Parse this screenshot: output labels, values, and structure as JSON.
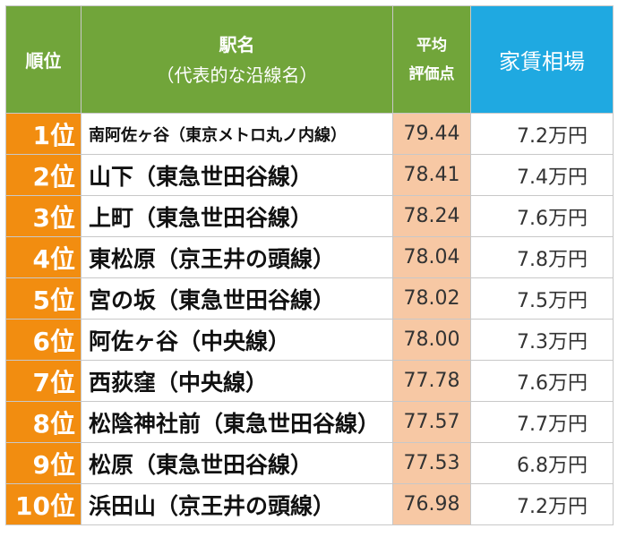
{
  "header": {
    "rank": "順位",
    "station": "駅名",
    "station_sub": "（代表的な沿線名）",
    "score_line1": "平均",
    "score_line2": "評価点",
    "rent": "家賃相場"
  },
  "colors": {
    "header_green": "#71a53a",
    "header_blue": "#1fa9e1",
    "rank_orange": "#f28d10",
    "score_peach": "#f7c8a4"
  },
  "rows": [
    {
      "rank": "1位",
      "station": "南阿佐ヶ谷（東京メトロ丸ノ内線）",
      "score": "79.44",
      "rent": "7.2万円"
    },
    {
      "rank": "2位",
      "station": "山下（東急世田谷線）",
      "score": "78.41",
      "rent": "7.4万円"
    },
    {
      "rank": "3位",
      "station": "上町（東急世田谷線）",
      "score": "78.24",
      "rent": "7.6万円"
    },
    {
      "rank": "4位",
      "station": "東松原（京王井の頭線）",
      "score": "78.04",
      "rent": "7.8万円"
    },
    {
      "rank": "5位",
      "station": "宮の坂（東急世田谷線）",
      "score": "78.02",
      "rent": "7.5万円"
    },
    {
      "rank": "6位",
      "station": "阿佐ヶ谷（中央線）",
      "score": "78.00",
      "rent": "7.3万円"
    },
    {
      "rank": "7位",
      "station": "西荻窪（中央線）",
      "score": "77.78",
      "rent": "7.6万円"
    },
    {
      "rank": "8位",
      "station": "松陰神社前（東急世田谷線）",
      "score": "77.57",
      "rent": "7.7万円"
    },
    {
      "rank": "9位",
      "station": "松原（東急世田谷線）",
      "score": "77.53",
      "rent": "6.8万円"
    },
    {
      "rank": "10位",
      "station": "浜田山（京王井の頭線）",
      "score": "76.98",
      "rent": "7.2万円"
    }
  ]
}
